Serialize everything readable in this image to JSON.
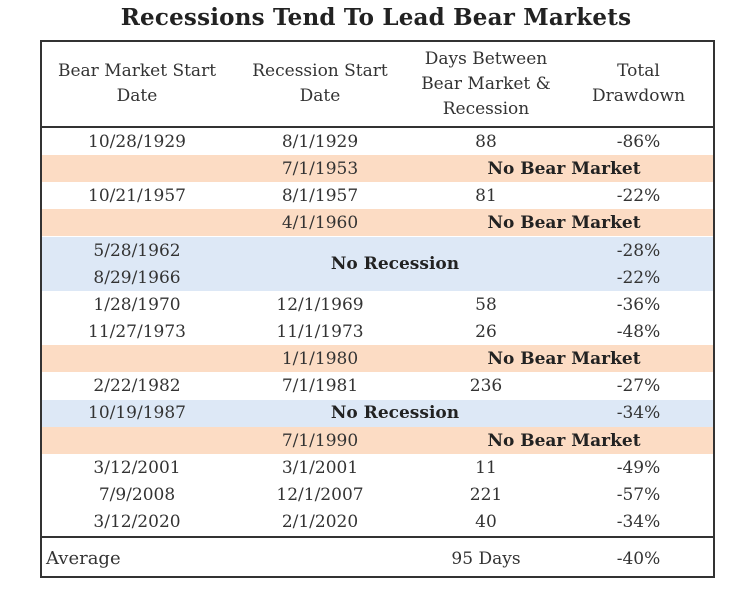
{
  "title": "Recessions Tend To Lead Bear Markets",
  "headers": {
    "bear_market_start": [
      "Bear Market Start",
      "Date"
    ],
    "recession_start": [
      "Recession Start",
      "Date"
    ],
    "days_between": [
      "Days Between",
      "Bear Market &",
      "Recession"
    ],
    "total_drawdown": [
      "Total",
      "Drawdown"
    ]
  },
  "rows": [
    {
      "bear": "10/28/1929",
      "recession": "8/1/1929",
      "days": "88",
      "drawdown": "-86%"
    },
    {
      "bear": "",
      "recession": "7/1/1953",
      "note": "No Bear Market",
      "drawdown": ""
    },
    {
      "bear": "10/21/1957",
      "recession": "8/1/1957",
      "days": "81",
      "drawdown": "-22%"
    },
    {
      "bear": "",
      "recession": "4/1/1960",
      "note": "No Bear Market",
      "drawdown": ""
    },
    {
      "bear": "5/28/1962",
      "recession": "",
      "days": "",
      "drawdown": "-28%"
    },
    {
      "bear": "8/29/1966",
      "recession": "",
      "days": "",
      "drawdown": "-22%"
    },
    {
      "bear": "1/28/1970",
      "recession": "12/1/1969",
      "days": "58",
      "drawdown": "-36%"
    },
    {
      "bear": "11/27/1973",
      "recession": "11/1/1973",
      "days": "26",
      "drawdown": "-48%"
    },
    {
      "bear": "",
      "recession": "1/1/1980",
      "note": "No Bear Market",
      "drawdown": ""
    },
    {
      "bear": "2/22/1982",
      "recession": "7/1/1981",
      "days": "236",
      "drawdown": "-27%"
    },
    {
      "bear": "10/19/1987",
      "recession": "",
      "note": "No Recession",
      "drawdown": "-34%"
    },
    {
      "bear": "",
      "recession": "7/1/1990",
      "note": "No Bear Market",
      "drawdown": ""
    },
    {
      "bear": "3/12/2001",
      "recession": "3/1/2001",
      "days": "11",
      "drawdown": "-49%"
    },
    {
      "bear": "7/9/2008",
      "recession": "12/1/2007",
      "days": "221",
      "drawdown": "-57%"
    },
    {
      "bear": "3/12/2020",
      "recession": "2/1/2020",
      "days": "40",
      "drawdown": "-34%"
    }
  ],
  "no_recession_1960s": "No Recession",
  "footer": {
    "label": "Average",
    "days": "95 Days",
    "drawdown": "-40%"
  },
  "colors": {
    "no_bear_market_band": "#fcdcc4",
    "no_recession_band": "#dde8f6",
    "border": "#333333"
  }
}
